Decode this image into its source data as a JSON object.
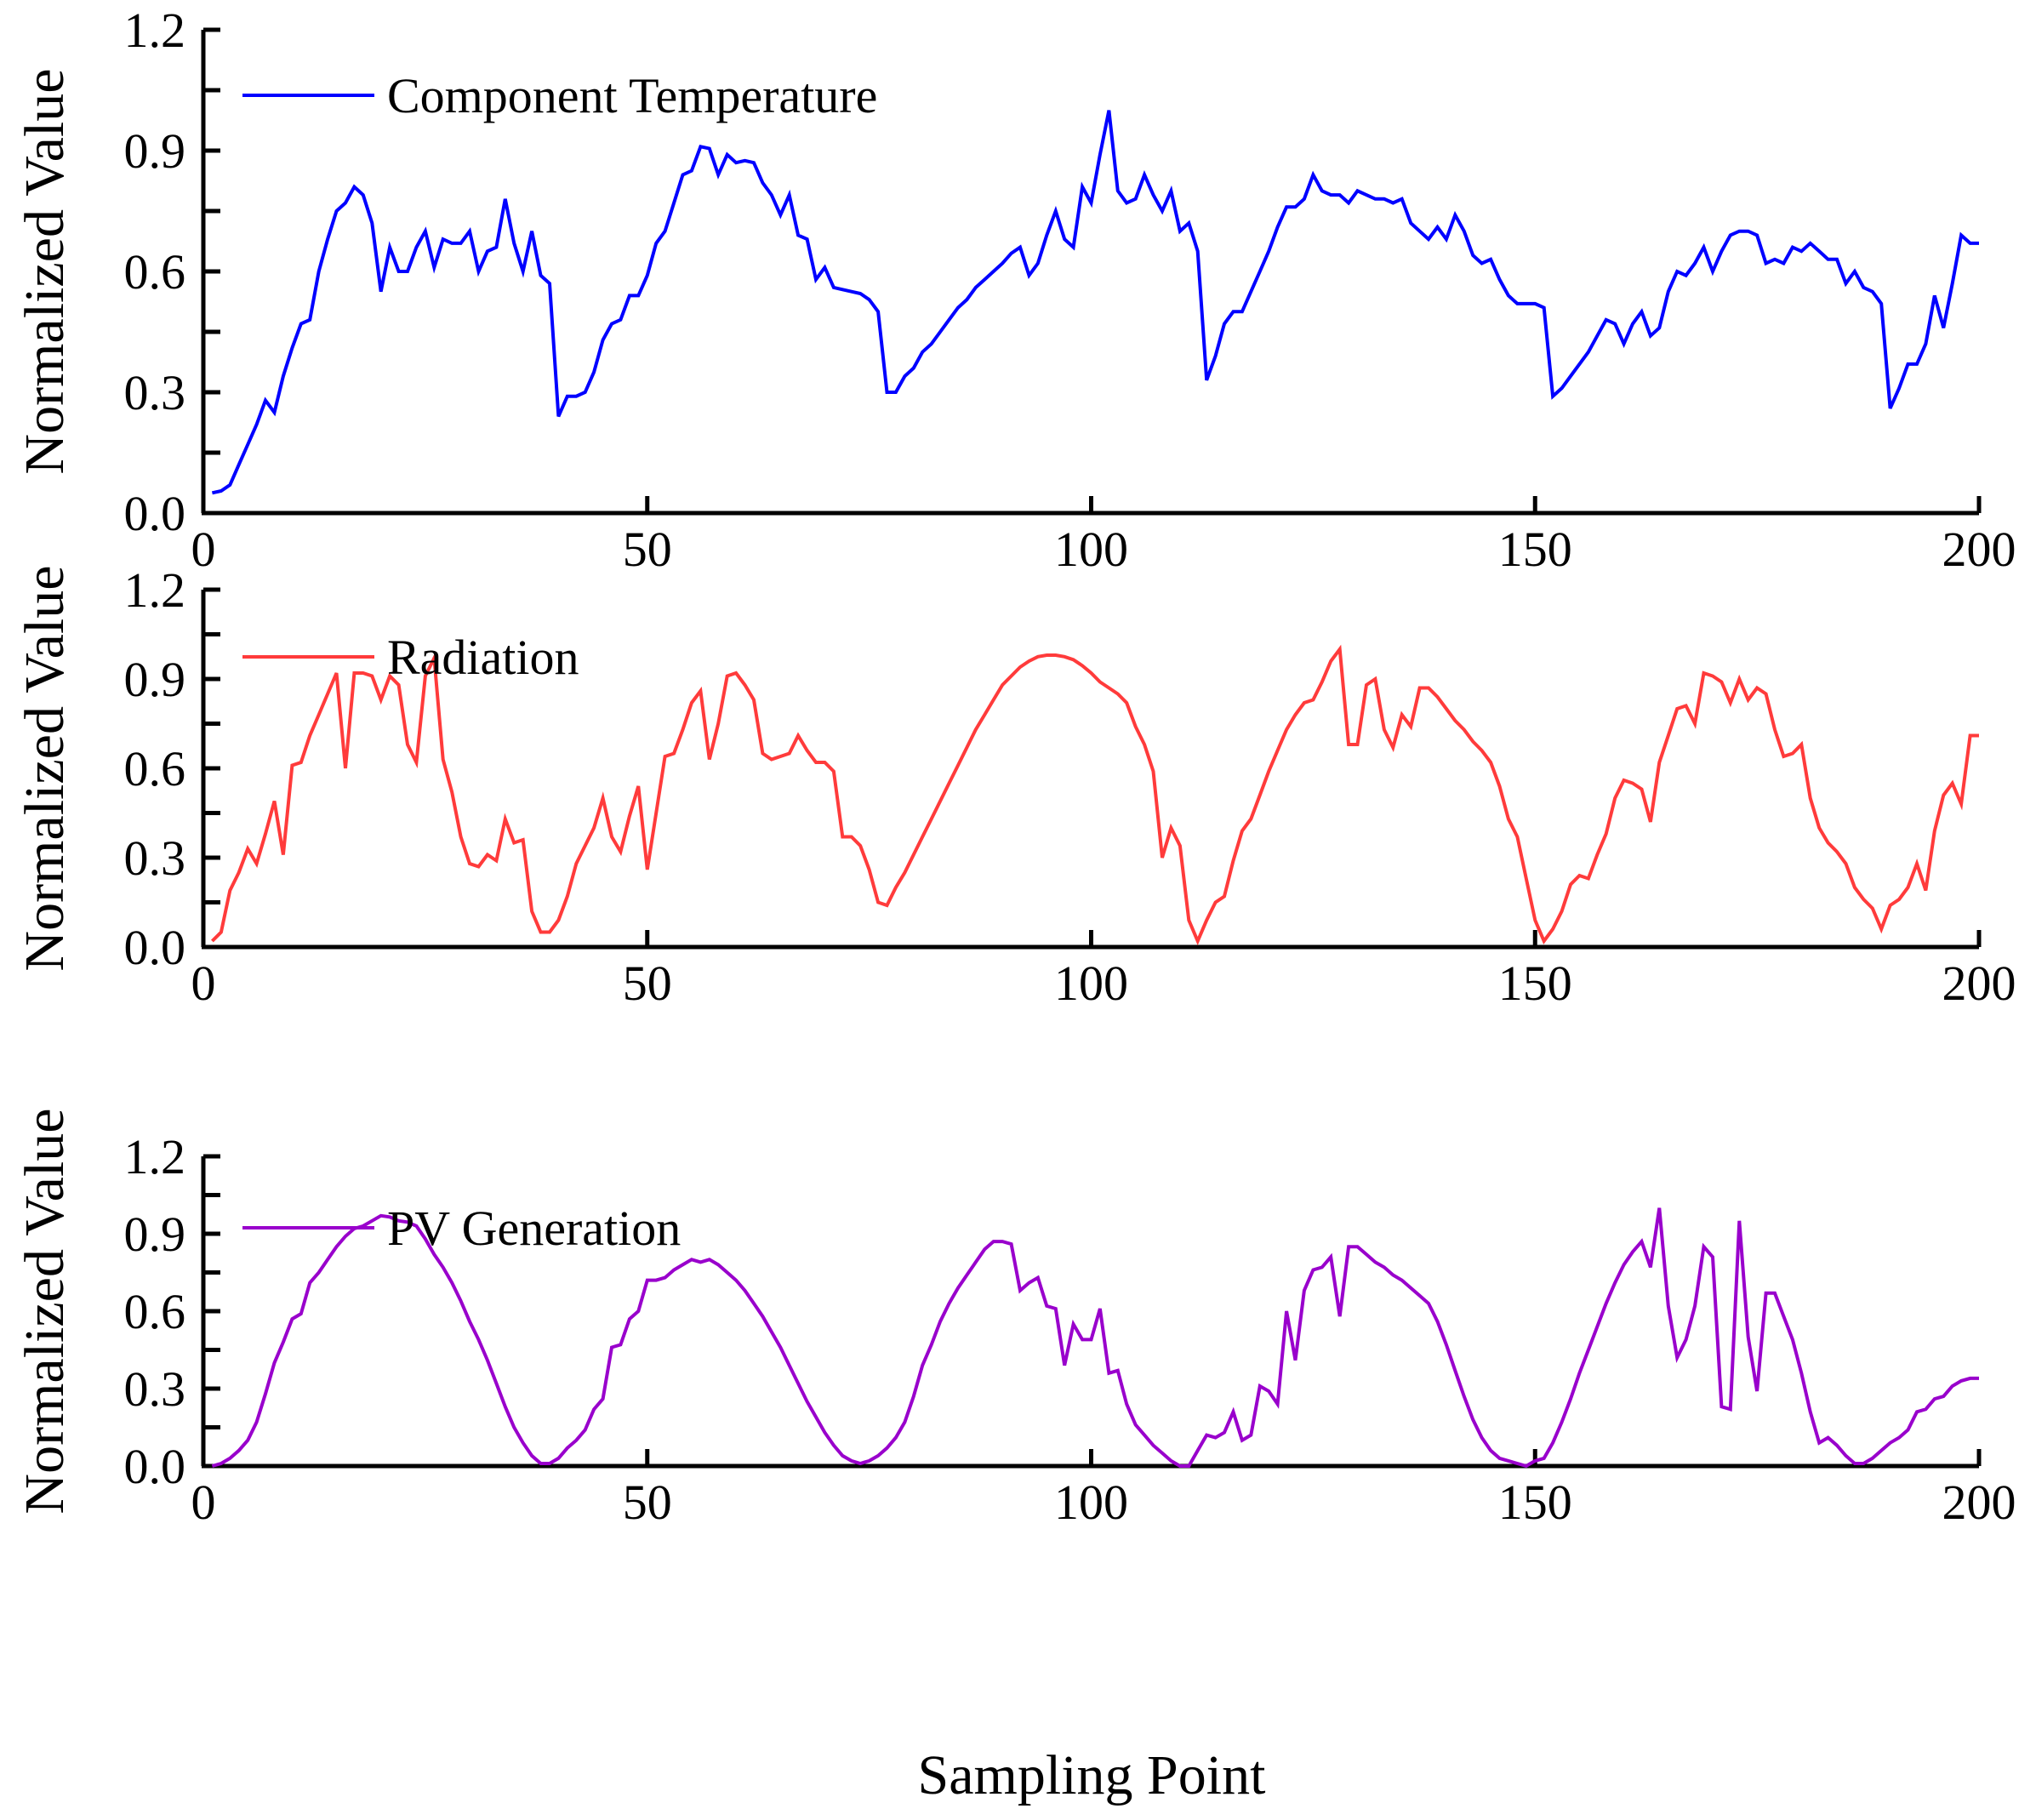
{
  "figure": {
    "xlabel": "Sampling Point",
    "ylabel": "Normalized Value"
  },
  "chart_data": [
    {
      "type": "line",
      "title": "",
      "legend": "Component Temperature",
      "color": "#0000FF",
      "xlabel": "",
      "ylabel": "Normalized Value",
      "xlim": [
        0,
        200
      ],
      "ylim": [
        0.0,
        1.2
      ],
      "xticks": [
        "0",
        "50",
        "100",
        "150",
        "200"
      ],
      "yticks": [
        "0.0",
        "0.3",
        "0.6",
        "0.9",
        "1.2"
      ],
      "legend_position": "upper left",
      "grid": false,
      "x_start": 1,
      "values": [
        0.05,
        0.055,
        0.07,
        0.12,
        0.17,
        0.22,
        0.28,
        0.25,
        0.34,
        0.41,
        0.47,
        0.48,
        0.6,
        0.68,
        0.75,
        0.77,
        0.81,
        0.79,
        0.72,
        0.55,
        0.66,
        0.6,
        0.6,
        0.66,
        0.7,
        0.61,
        0.68,
        0.67,
        0.67,
        0.7,
        0.6,
        0.65,
        0.66,
        0.78,
        0.67,
        0.6,
        0.7,
        0.59,
        0.57,
        0.24,
        0.29,
        0.29,
        0.3,
        0.35,
        0.43,
        0.47,
        0.48,
        0.54,
        0.54,
        0.59,
        0.67,
        0.7,
        0.77,
        0.84,
        0.85,
        0.91,
        0.905,
        0.84,
        0.89,
        0.87,
        0.875,
        0.87,
        0.82,
        0.79,
        0.74,
        0.79,
        0.69,
        0.68,
        0.58,
        0.61,
        0.56,
        0.555,
        0.55,
        0.545,
        0.53,
        0.5,
        0.3,
        0.3,
        0.34,
        0.36,
        0.4,
        0.42,
        0.45,
        0.48,
        0.51,
        0.53,
        0.56,
        0.58,
        0.6,
        0.62,
        0.645,
        0.66,
        0.59,
        0.62,
        0.69,
        0.75,
        0.68,
        0.66,
        0.81,
        0.77,
        0.89,
        1.0,
        0.8,
        0.77,
        0.78,
        0.84,
        0.79,
        0.75,
        0.8,
        0.7,
        0.72,
        0.65,
        0.33,
        0.39,
        0.47,
        0.5,
        0.5,
        0.55,
        0.6,
        0.65,
        0.71,
        0.76,
        0.76,
        0.78,
        0.84,
        0.8,
        0.79,
        0.79,
        0.77,
        0.8,
        0.79,
        0.78,
        0.78,
        0.77,
        0.78,
        0.72,
        0.7,
        0.68,
        0.71,
        0.68,
        0.74,
        0.7,
        0.64,
        0.62,
        0.63,
        0.58,
        0.54,
        0.52,
        0.52,
        0.52,
        0.51,
        0.29,
        0.31,
        0.34,
        0.37,
        0.4,
        0.44,
        0.48,
        0.47,
        0.42,
        0.47,
        0.5,
        0.44,
        0.46,
        0.55,
        0.6,
        0.59,
        0.62,
        0.66,
        0.6,
        0.65,
        0.69,
        0.7,
        0.7,
        0.69,
        0.62,
        0.63,
        0.62,
        0.66,
        0.65,
        0.67,
        0.65,
        0.63,
        0.63,
        0.57,
        0.6,
        0.56,
        0.55,
        0.52,
        0.26,
        0.31,
        0.37,
        0.37,
        0.42,
        0.54,
        0.46,
        0.57,
        0.69,
        0.67,
        0.67
      ]
    },
    {
      "type": "line",
      "title": "",
      "legend": "Radiation",
      "color": "#FF3B3B",
      "xlabel": "",
      "ylabel": "Normalized Value",
      "xlim": [
        0,
        200
      ],
      "ylim": [
        0.0,
        1.2
      ],
      "xticks": [
        "0",
        "50",
        "100",
        "150",
        "200"
      ],
      "yticks": [
        "0.0",
        "0.3",
        "0.6",
        "0.9",
        "1.2"
      ],
      "legend_position": "upper left",
      "grid": false,
      "x_start": 1,
      "values": [
        0.02,
        0.05,
        0.19,
        0.25,
        0.33,
        0.28,
        0.38,
        0.49,
        0.31,
        0.61,
        0.62,
        0.71,
        0.78,
        0.85,
        0.92,
        0.6,
        0.92,
        0.92,
        0.91,
        0.83,
        0.91,
        0.88,
        0.68,
        0.62,
        0.91,
        0.97,
        0.63,
        0.52,
        0.37,
        0.28,
        0.27,
        0.31,
        0.29,
        0.43,
        0.35,
        0.36,
        0.12,
        0.05,
        0.05,
        0.09,
        0.17,
        0.28,
        0.34,
        0.4,
        0.5,
        0.37,
        0.32,
        0.44,
        0.54,
        0.26,
        0.45,
        0.64,
        0.65,
        0.73,
        0.82,
        0.86,
        0.63,
        0.75,
        0.91,
        0.92,
        0.88,
        0.83,
        0.65,
        0.63,
        0.64,
        0.65,
        0.71,
        0.66,
        0.62,
        0.62,
        0.59,
        0.37,
        0.37,
        0.34,
        0.26,
        0.15,
        0.14,
        0.2,
        0.25,
        0.31,
        0.37,
        0.43,
        0.49,
        0.55,
        0.61,
        0.67,
        0.73,
        0.78,
        0.83,
        0.88,
        0.91,
        0.94,
        0.96,
        0.975,
        0.98,
        0.98,
        0.975,
        0.965,
        0.945,
        0.92,
        0.89,
        0.87,
        0.85,
        0.82,
        0.74,
        0.68,
        0.59,
        0.3,
        0.4,
        0.34,
        0.09,
        0.02,
        0.09,
        0.15,
        0.17,
        0.29,
        0.39,
        0.43,
        0.51,
        0.59,
        0.66,
        0.73,
        0.78,
        0.82,
        0.83,
        0.89,
        0.96,
        1.0,
        0.68,
        0.68,
        0.88,
        0.9,
        0.73,
        0.67,
        0.78,
        0.74,
        0.87,
        0.87,
        0.84,
        0.8,
        0.76,
        0.73,
        0.69,
        0.66,
        0.62,
        0.54,
        0.43,
        0.37,
        0.23,
        0.09,
        0.02,
        0.06,
        0.12,
        0.21,
        0.24,
        0.23,
        0.31,
        0.38,
        0.5,
        0.56,
        0.55,
        0.53,
        0.42,
        0.62,
        0.71,
        0.8,
        0.81,
        0.75,
        0.92,
        0.91,
        0.89,
        0.82,
        0.9,
        0.83,
        0.87,
        0.85,
        0.73,
        0.64,
        0.65,
        0.68,
        0.5,
        0.4,
        0.35,
        0.32,
        0.28,
        0.2,
        0.16,
        0.13,
        0.06,
        0.14,
        0.16,
        0.2,
        0.28,
        0.19,
        0.39,
        0.51,
        0.55,
        0.48,
        0.71,
        0.71
      ]
    },
    {
      "type": "line",
      "title": "",
      "legend": "PV Generation",
      "color": "#9900CC",
      "xlabel": "Sampling Point",
      "ylabel": "Normalized Value",
      "xlim": [
        0,
        200
      ],
      "ylim": [
        0.0,
        1.2
      ],
      "xticks": [
        "0",
        "50",
        "100",
        "150",
        "200"
      ],
      "yticks": [
        "0.0",
        "0.3",
        "0.6",
        "0.9",
        "1.2"
      ],
      "legend_position": "upper left",
      "grid": false,
      "x_start": 1,
      "values": [
        0.0,
        0.01,
        0.03,
        0.06,
        0.1,
        0.17,
        0.28,
        0.4,
        0.48,
        0.57,
        0.59,
        0.71,
        0.75,
        0.8,
        0.85,
        0.89,
        0.92,
        0.93,
        0.95,
        0.97,
        0.965,
        0.95,
        0.945,
        0.93,
        0.88,
        0.82,
        0.77,
        0.71,
        0.64,
        0.56,
        0.49,
        0.41,
        0.32,
        0.23,
        0.15,
        0.09,
        0.04,
        0.01,
        0.01,
        0.03,
        0.07,
        0.1,
        0.14,
        0.22,
        0.26,
        0.46,
        0.47,
        0.57,
        0.6,
        0.72,
        0.72,
        0.73,
        0.76,
        0.78,
        0.8,
        0.79,
        0.8,
        0.78,
        0.75,
        0.72,
        0.68,
        0.63,
        0.58,
        0.52,
        0.46,
        0.39,
        0.32,
        0.25,
        0.19,
        0.13,
        0.08,
        0.04,
        0.02,
        0.01,
        0.02,
        0.04,
        0.07,
        0.11,
        0.17,
        0.27,
        0.39,
        0.47,
        0.56,
        0.63,
        0.69,
        0.74,
        0.79,
        0.84,
        0.87,
        0.87,
        0.86,
        0.68,
        0.71,
        0.73,
        0.62,
        0.61,
        0.39,
        0.55,
        0.49,
        0.49,
        0.61,
        0.36,
        0.37,
        0.24,
        0.16,
        0.12,
        0.08,
        0.05,
        0.02,
        0.0,
        0.0,
        0.06,
        0.12,
        0.11,
        0.13,
        0.21,
        0.1,
        0.12,
        0.31,
        0.29,
        0.24,
        0.6,
        0.41,
        0.68,
        0.76,
        0.77,
        0.81,
        0.58,
        0.85,
        0.85,
        0.82,
        0.79,
        0.77,
        0.74,
        0.72,
        0.69,
        0.66,
        0.63,
        0.56,
        0.47,
        0.37,
        0.27,
        0.18,
        0.11,
        0.06,
        0.03,
        0.02,
        0.01,
        0.0,
        0.02,
        0.03,
        0.09,
        0.17,
        0.26,
        0.36,
        0.45,
        0.54,
        0.63,
        0.71,
        0.78,
        0.83,
        0.87,
        0.77,
        1.0,
        0.62,
        0.42,
        0.49,
        0.62,
        0.85,
        0.81,
        0.23,
        0.22,
        0.95,
        0.5,
        0.29,
        0.67,
        0.67,
        0.58,
        0.49,
        0.36,
        0.21,
        0.09,
        0.11,
        0.08,
        0.04,
        0.01,
        0.01,
        0.03,
        0.06,
        0.09,
        0.11,
        0.14,
        0.21,
        0.22,
        0.26,
        0.27,
        0.31,
        0.33,
        0.34,
        0.34
      ]
    }
  ]
}
